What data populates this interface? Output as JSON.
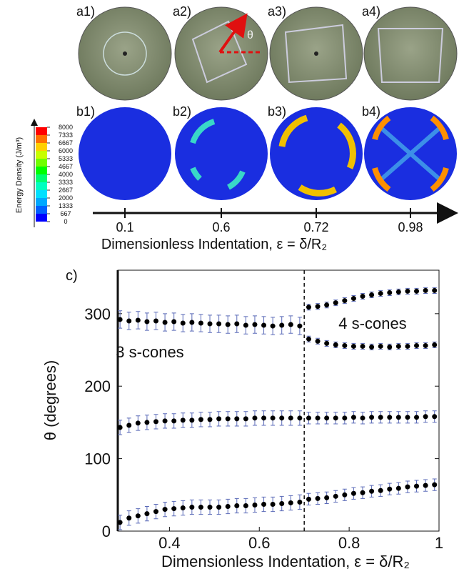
{
  "top_panels": {
    "a_labels": [
      "a1)",
      "a2)",
      "a3)",
      "a4)"
    ],
    "b_labels": [
      "b1)",
      "b2)",
      "b3)",
      "b4)"
    ],
    "theta_symbol": "θ",
    "colorbar": {
      "title": "Energy Density (J/m³)",
      "ticks": [
        0,
        667,
        1333,
        2000,
        2667,
        3333,
        4000,
        4667,
        5333,
        6000,
        6667,
        7333,
        8000
      ],
      "colors": [
        "#0000ff",
        "#0060ff",
        "#00a8ff",
        "#00e0ff",
        "#00ffc0",
        "#00ff70",
        "#00ff00",
        "#70ff00",
        "#c8ff00",
        "#ffd000",
        "#ff7000",
        "#ff0000"
      ]
    },
    "strain_axis": {
      "ticks": [
        0.1,
        0.6,
        0.72,
        0.98
      ],
      "label": "Dimensionless Indentation, ε = δ/R₂"
    }
  },
  "chart_data": {
    "type": "scatter",
    "panel_label": "c)",
    "x_label": "Dimensionless Indentation, ε = δ/R₂",
    "y_label": "θ (degrees)",
    "annotations": [
      "3 s-cones",
      "4 s-cones"
    ],
    "xlim": [
      0.285,
      1
    ],
    "ylim": [
      0,
      360
    ],
    "xticks": [
      0.4,
      0.6,
      0.8,
      1
    ],
    "yticks": [
      0,
      100,
      200,
      300
    ],
    "vline": 0.7,
    "marker_color": "#000000",
    "error_color": "#5a6ab8",
    "x": [
      0.29,
      0.31,
      0.33,
      0.35,
      0.37,
      0.39,
      0.41,
      0.43,
      0.45,
      0.47,
      0.49,
      0.51,
      0.53,
      0.55,
      0.57,
      0.59,
      0.61,
      0.63,
      0.65,
      0.67,
      0.69,
      0.71,
      0.73,
      0.75,
      0.77,
      0.79,
      0.81,
      0.83,
      0.85,
      0.87,
      0.89,
      0.91,
      0.93,
      0.95,
      0.97,
      0.99
    ],
    "series": [
      {
        "values": [
          292,
          290,
          291,
          289,
          290,
          288,
          289,
          287,
          288,
          287,
          286,
          286,
          285,
          286,
          284,
          285,
          284,
          283,
          284,
          285,
          283,
          309,
          310,
          312,
          315,
          318,
          321,
          324,
          326,
          328,
          329,
          330,
          331,
          331,
          332,
          332
        ],
        "errors": [
          12,
          12,
          12,
          12,
          12,
          12,
          12,
          12,
          12,
          12,
          12,
          12,
          12,
          12,
          12,
          12,
          12,
          12,
          12,
          12,
          12,
          4,
          4,
          4,
          4,
          4,
          4,
          4,
          4,
          4,
          4,
          4,
          4,
          4,
          4,
          4
        ]
      },
      {
        "values": [
          null,
          null,
          null,
          null,
          null,
          null,
          null,
          null,
          null,
          null,
          null,
          null,
          null,
          null,
          null,
          null,
          null,
          null,
          null,
          null,
          null,
          265,
          262,
          259,
          257,
          256,
          255,
          255,
          254,
          255,
          254,
          255,
          255,
          256,
          256,
          257
        ],
        "errors": [
          null,
          null,
          null,
          null,
          null,
          null,
          null,
          null,
          null,
          null,
          null,
          null,
          null,
          null,
          null,
          null,
          null,
          null,
          null,
          null,
          null,
          4,
          4,
          4,
          4,
          4,
          4,
          4,
          4,
          4,
          4,
          4,
          4,
          4,
          4,
          4
        ]
      },
      {
        "values": [
          143,
          146,
          149,
          150,
          151,
          152,
          152,
          153,
          153,
          154,
          154,
          155,
          155,
          155,
          155,
          156,
          156,
          156,
          156,
          156,
          156,
          156,
          156,
          156,
          156,
          156,
          157,
          156,
          157,
          157,
          157,
          157,
          157,
          157,
          158,
          158
        ],
        "errors": [
          10,
          10,
          10,
          10,
          10,
          10,
          10,
          10,
          10,
          10,
          10,
          10,
          10,
          10,
          10,
          10,
          10,
          10,
          10,
          10,
          10,
          8,
          8,
          8,
          8,
          8,
          8,
          8,
          8,
          8,
          8,
          8,
          8,
          8,
          8,
          8
        ]
      },
      {
        "values": [
          12,
          18,
          21,
          24,
          27,
          30,
          31,
          32,
          33,
          33,
          33,
          33,
          34,
          35,
          35,
          36,
          37,
          37,
          38,
          39,
          40,
          44,
          45,
          46,
          48,
          50,
          52,
          53,
          55,
          56,
          58,
          59,
          61,
          62,
          63,
          64
        ],
        "errors": [
          10,
          10,
          10,
          10,
          10,
          10,
          10,
          10,
          10,
          10,
          10,
          10,
          10,
          10,
          10,
          10,
          10,
          10,
          10,
          10,
          10,
          8,
          8,
          8,
          8,
          8,
          8,
          8,
          8,
          8,
          8,
          8,
          8,
          8,
          8,
          8
        ]
      }
    ]
  }
}
